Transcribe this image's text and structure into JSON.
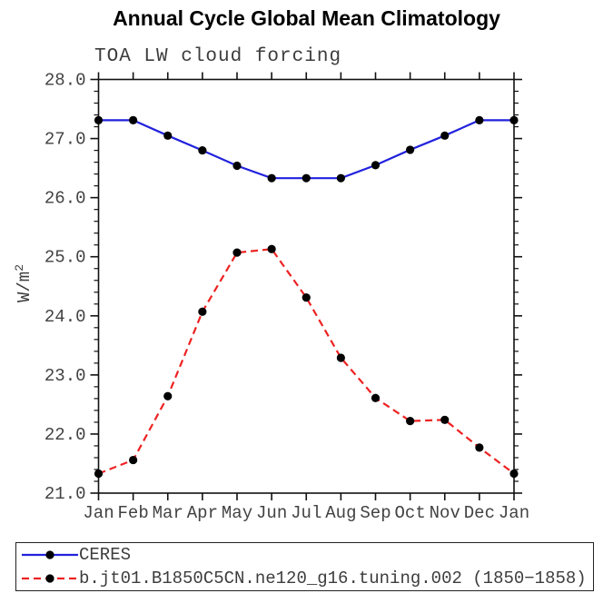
{
  "title": "Annual Cycle Global Mean Climatology",
  "subtitle": "TOA LW cloud forcing",
  "ylabel": "W/m",
  "ylabel_sup": "2",
  "colors": {
    "ceres_line": "#2222dd",
    "model_line": "#ee2222",
    "marker": "#000000",
    "axis": "#111111",
    "text_gray": "#3d3d3d"
  },
  "chart_data": {
    "type": "line",
    "x_categories": [
      "Jan",
      "Feb",
      "Mar",
      "Apr",
      "May",
      "Jun",
      "Jul",
      "Aug",
      "Sep",
      "Oct",
      "Nov",
      "Dec",
      "Jan"
    ],
    "ylim": [
      21.0,
      28.0
    ],
    "yticks": {
      "values": [
        21,
        22,
        23,
        24,
        25,
        26,
        27,
        28
      ],
      "labels": [
        "21.0",
        "22.0",
        "23.0",
        "24.0",
        "25.0",
        "26.0",
        "27.0",
        "28.0"
      ]
    },
    "ytick_minor_step": 0.2,
    "grid": false,
    "legend_position": "bottom-box",
    "series": [
      {
        "name": "CERES",
        "style": "solid",
        "color": "#2222dd",
        "values": [
          27.31,
          27.31,
          27.05,
          26.8,
          26.54,
          26.33,
          26.33,
          26.33,
          26.55,
          26.81,
          27.05,
          27.31,
          27.31
        ]
      },
      {
        "name": "b.jt01.B1850C5CN.ne120_g16.tuning.002 (1850−1858)",
        "style": "dashed",
        "color": "#ee2222",
        "values": [
          21.33,
          21.56,
          22.64,
          24.07,
          25.07,
          25.13,
          24.31,
          23.29,
          22.61,
          22.22,
          22.24,
          21.77,
          21.33
        ]
      }
    ]
  }
}
